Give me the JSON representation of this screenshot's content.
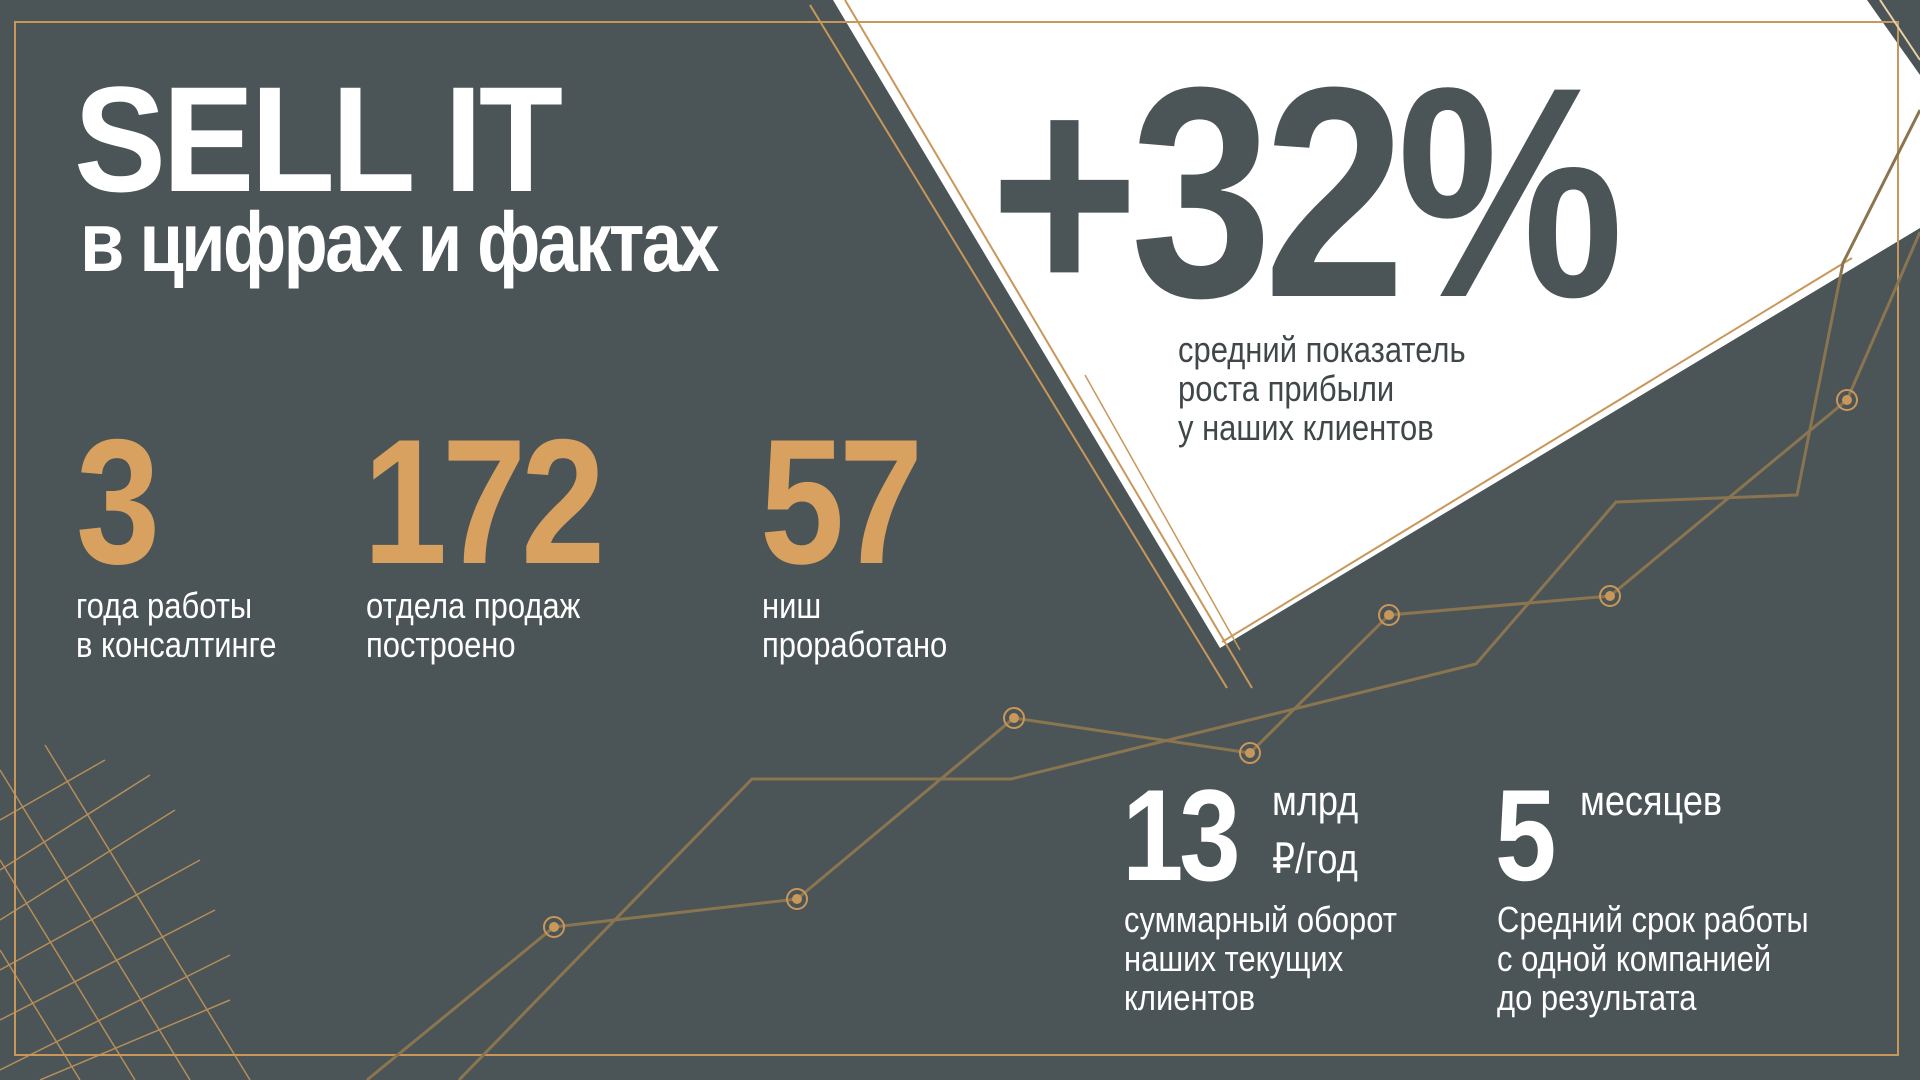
{
  "colors": {
    "background": "#4b5456",
    "accent_gold": "#d9a15f",
    "line_gold": "#c8975a",
    "white": "#ffffff"
  },
  "header": {
    "title": "SELL IT",
    "subtitle": "в цифрах и фактах"
  },
  "highlight": {
    "value": "+32%",
    "caption": [
      "средний показатель",
      "роста прибыли",
      "у наших клиентов"
    ]
  },
  "stats": [
    {
      "value": "3",
      "caption": [
        "года работы",
        "в консалтинге"
      ]
    },
    {
      "value": "172",
      "caption": [
        "отдела продаж",
        "построено"
      ]
    },
    {
      "value": "57",
      "caption": [
        "ниш",
        "проработано"
      ]
    }
  ],
  "bottom_stats": [
    {
      "value": "13",
      "unit": [
        "млрд",
        "₽/год"
      ],
      "caption": [
        "суммарный оборот",
        "наших текущих",
        "клиентов"
      ]
    },
    {
      "value": "5",
      "unit": [
        "месяцев"
      ],
      "caption": [
        "Средний срок работы",
        "с одной компанией",
        "до результата"
      ]
    }
  ]
}
